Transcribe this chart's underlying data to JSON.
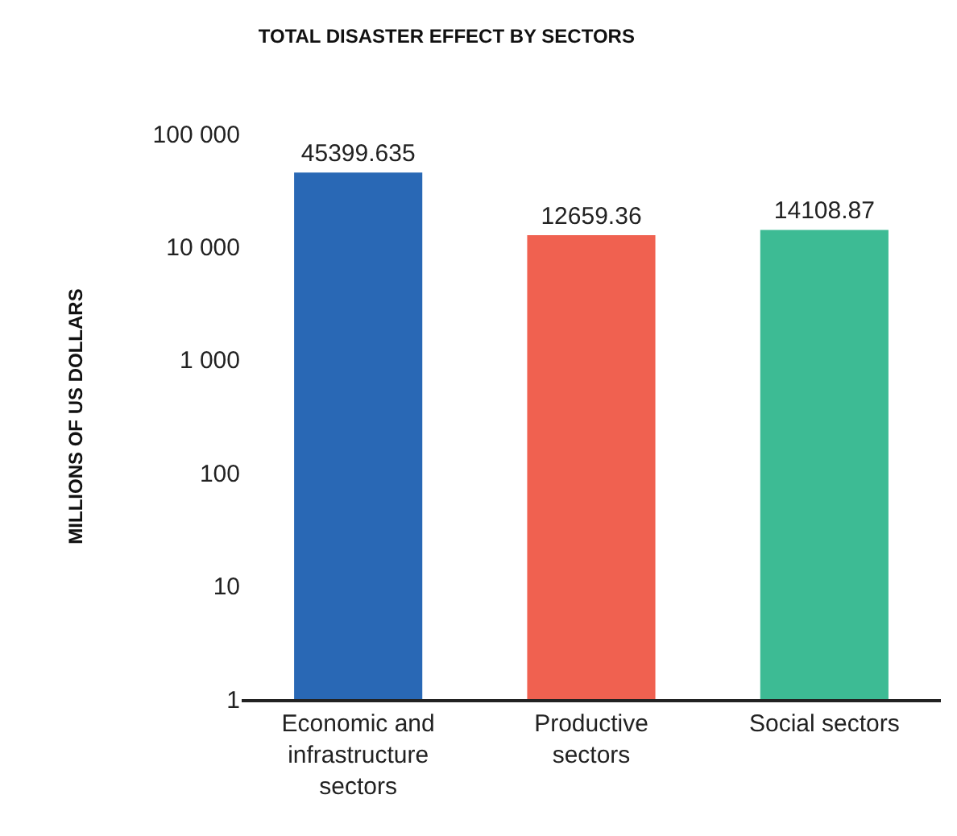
{
  "chart_data": {
    "type": "bar",
    "title": "TOTAL DISASTER EFFECT BY SECTORS",
    "ylabel": "MILLIONS OF US DOLLARS",
    "categories": [
      "Economic and infrastructure sectors",
      "Productive sectors",
      "Social sectors"
    ],
    "values": [
      45399.635,
      12659.36,
      14108.87
    ],
    "colors": [
      "#2968b5",
      "#f06150",
      "#3dbb94"
    ],
    "log": true,
    "ylim": [
      1,
      100000
    ],
    "yticks": [
      1,
      10,
      100,
      {
        "value": 1000,
        "label": "1 000"
      },
      {
        "value": 10000,
        "label": "10 000"
      },
      {
        "value": 100000,
        "label": "100 000"
      }
    ],
    "data_labels": true,
    "legend": false
  }
}
